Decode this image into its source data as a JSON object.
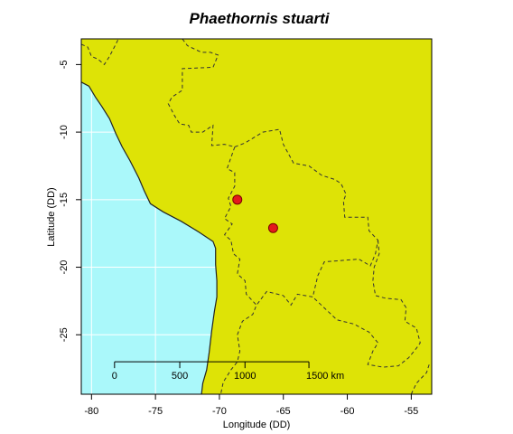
{
  "title": "Phaethornis stuarti",
  "xlabel": "Longitude (DD)",
  "ylabel": "Latitude (DD)",
  "colors": {
    "ocean": "#aaf8fa",
    "land": "#dee306",
    "grid": "#ffffff",
    "point_fill": "#e31a1c",
    "point_stroke": "#7a0000",
    "border": "#333333",
    "coast": "#222222"
  },
  "chart_data": {
    "type": "scatter",
    "xlim": [
      -80.8,
      -53.4
    ],
    "ylim": [
      -29.4,
      -3.1
    ],
    "x_ticks": [
      -80,
      -75,
      -70,
      -65,
      -60,
      -55
    ],
    "x_tick_labels": [
      "-80",
      "-75",
      "-70",
      "-65",
      "-60",
      "-55"
    ],
    "y_ticks": [
      -5,
      -10,
      -15,
      -20,
      -25
    ],
    "y_tick_labels": [
      "-5",
      "-10",
      "-15",
      "-20",
      "-25"
    ],
    "grid": true,
    "points": [
      {
        "x": -68.6,
        "y": -15.0
      },
      {
        "x": -65.8,
        "y": -17.1
      }
    ],
    "scale_bar": {
      "y": -27.0,
      "x_start": -78.2,
      "x_end": -63.0,
      "ticks": [
        {
          "x": -78.2,
          "label": "0"
        },
        {
          "x": -73.1,
          "label": "500"
        },
        {
          "x": -68.0,
          "label": "1000"
        },
        {
          "x": -63.0,
          "label": "1500 km"
        }
      ]
    }
  },
  "geo": {
    "coast": [
      [
        -80.8,
        -6.3
      ],
      [
        -80.2,
        -6.6
      ],
      [
        -79.7,
        -7.4
      ],
      [
        -79.2,
        -8.1
      ],
      [
        -78.6,
        -9.0
      ],
      [
        -78.1,
        -10.1
      ],
      [
        -77.6,
        -11.1
      ],
      [
        -77.0,
        -12.1
      ],
      [
        -76.3,
        -13.4
      ],
      [
        -75.9,
        -14.3
      ],
      [
        -75.4,
        -15.3
      ],
      [
        -74.4,
        -15.9
      ],
      [
        -73.0,
        -16.6
      ],
      [
        -71.6,
        -17.4
      ],
      [
        -70.5,
        -18.1
      ],
      [
        -70.3,
        -18.6
      ],
      [
        -70.3,
        -19.8
      ],
      [
        -70.2,
        -21.0
      ],
      [
        -70.2,
        -22.2
      ],
      [
        -70.4,
        -23.3
      ],
      [
        -70.6,
        -24.7
      ],
      [
        -70.8,
        -26.3
      ],
      [
        -71.0,
        -27.6
      ],
      [
        -71.3,
        -28.6
      ],
      [
        -71.4,
        -29.4
      ]
    ],
    "borders": [
      [
        [
          -80.8,
          -3.5
        ],
        [
          -80.3,
          -3.7
        ],
        [
          -80.0,
          -4.4
        ],
        [
          -79.5,
          -4.6
        ],
        [
          -79.0,
          -5.0
        ],
        [
          -78.6,
          -4.4
        ],
        [
          -78.1,
          -3.5
        ],
        [
          -77.9,
          -3.1
        ]
      ],
      [
        [
          -72.9,
          -3.1
        ],
        [
          -72.5,
          -3.6
        ],
        [
          -71.4,
          -4.1
        ],
        [
          -70.7,
          -4.1
        ],
        [
          -70.1,
          -4.3
        ],
        [
          -70.5,
          -5.2
        ],
        [
          -72.9,
          -5.3
        ],
        [
          -72.9,
          -6.9
        ],
        [
          -73.7,
          -7.4
        ],
        [
          -74.0,
          -7.9
        ],
        [
          -73.5,
          -8.8
        ],
        [
          -73.1,
          -9.4
        ],
        [
          -72.4,
          -9.5
        ],
        [
          -72.2,
          -10.0
        ],
        [
          -71.3,
          -10.0
        ],
        [
          -70.5,
          -9.5
        ],
        [
          -70.6,
          -11.0
        ],
        [
          -69.6,
          -10.9
        ],
        [
          -68.8,
          -11.1
        ]
      ],
      [
        [
          -68.8,
          -11.1
        ],
        [
          -69.4,
          -12.7
        ],
        [
          -68.8,
          -13.0
        ],
        [
          -68.8,
          -14.0
        ],
        [
          -69.3,
          -14.9
        ],
        [
          -69.1,
          -15.5
        ],
        [
          -69.6,
          -16.4
        ],
        [
          -69.0,
          -16.8
        ],
        [
          -69.6,
          -17.6
        ],
        [
          -69.1,
          -18.0
        ],
        [
          -68.9,
          -19.0
        ],
        [
          -68.4,
          -19.4
        ],
        [
          -68.6,
          -20.5
        ],
        [
          -68.0,
          -21.0
        ],
        [
          -67.9,
          -22.0
        ],
        [
          -67.1,
          -22.8
        ],
        [
          -67.4,
          -23.5
        ],
        [
          -68.2,
          -24.0
        ],
        [
          -68.6,
          -25.0
        ],
        [
          -68.4,
          -26.2
        ],
        [
          -68.6,
          -27.0
        ],
        [
          -69.1,
          -27.6
        ],
        [
          -69.7,
          -28.5
        ],
        [
          -69.9,
          -29.4
        ]
      ],
      [
        [
          -68.8,
          -11.1
        ],
        [
          -68.0,
          -10.8
        ],
        [
          -66.6,
          -10.0
        ],
        [
          -65.3,
          -9.8
        ],
        [
          -65.0,
          -10.9
        ],
        [
          -64.2,
          -12.3
        ],
        [
          -63.0,
          -12.5
        ],
        [
          -62.0,
          -13.2
        ],
        [
          -61.0,
          -13.5
        ],
        [
          -60.5,
          -13.8
        ],
        [
          -60.1,
          -14.6
        ],
        [
          -60.3,
          -15.1
        ],
        [
          -60.2,
          -16.3
        ],
        [
          -58.4,
          -16.3
        ],
        [
          -58.3,
          -17.3
        ],
        [
          -57.6,
          -18.0
        ],
        [
          -57.8,
          -19.0
        ],
        [
          -58.2,
          -19.9
        ],
        [
          -59.1,
          -19.4
        ],
        [
          -61.8,
          -19.6
        ],
        [
          -62.3,
          -20.6
        ],
        [
          -62.7,
          -22.2
        ],
        [
          -63.9,
          -22.0
        ],
        [
          -64.4,
          -22.8
        ],
        [
          -65.0,
          -22.1
        ],
        [
          -66.3,
          -21.8
        ],
        [
          -67.1,
          -22.8
        ]
      ],
      [
        [
          -57.6,
          -18.0
        ],
        [
          -57.5,
          -19.0
        ],
        [
          -57.9,
          -20.0
        ],
        [
          -58.0,
          -21.0
        ],
        [
          -57.8,
          -22.1
        ],
        [
          -57.0,
          -22.3
        ],
        [
          -55.8,
          -22.4
        ],
        [
          -55.4,
          -23.0
        ],
        [
          -55.5,
          -24.0
        ],
        [
          -54.6,
          -24.5
        ],
        [
          -54.3,
          -25.6
        ],
        [
          -54.6,
          -26.0
        ],
        [
          -55.2,
          -26.7
        ],
        [
          -56.0,
          -27.3
        ],
        [
          -57.2,
          -27.4
        ],
        [
          -58.4,
          -27.2
        ],
        [
          -58.0,
          -26.2
        ],
        [
          -57.6,
          -25.6
        ],
        [
          -58.3,
          -24.8
        ],
        [
          -59.5,
          -24.2
        ],
        [
          -60.8,
          -23.9
        ],
        [
          -61.7,
          -23.1
        ],
        [
          -62.7,
          -22.2
        ]
      ],
      [
        [
          -55.0,
          -29.4
        ],
        [
          -54.6,
          -28.6
        ],
        [
          -53.8,
          -27.8
        ],
        [
          -53.6,
          -27.2
        ]
      ]
    ]
  }
}
